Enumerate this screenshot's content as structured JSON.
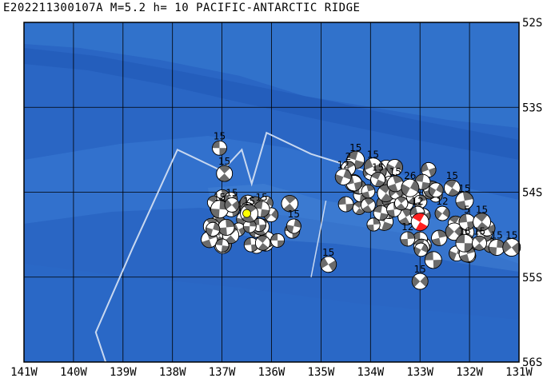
{
  "title": "E202211300107A  M=5.2  h= 10  PACIFIC-ANTARCTIC RIDGE",
  "map": {
    "lon_range": [
      -141,
      -131
    ],
    "lat_range": [
      -56,
      -52
    ],
    "lon_ticks": [
      {
        "value": -141,
        "label": "141W"
      },
      {
        "value": -140,
        "label": "140W"
      },
      {
        "value": -139,
        "label": "139W"
      },
      {
        "value": -138,
        "label": "138W"
      },
      {
        "value": -137,
        "label": "137W"
      },
      {
        "value": -136,
        "label": "136W"
      },
      {
        "value": -135,
        "label": "135W"
      },
      {
        "value": -134,
        "label": "134W"
      },
      {
        "value": -133,
        "label": "133W"
      },
      {
        "value": -132,
        "label": "132W"
      },
      {
        "value": -131,
        "label": "131W"
      }
    ],
    "lat_ticks": [
      {
        "value": -52,
        "label": "52S"
      },
      {
        "value": -53,
        "label": "53S"
      },
      {
        "value": -54,
        "label": "54S"
      },
      {
        "value": -55,
        "label": "55S"
      },
      {
        "value": -56,
        "label": "56S"
      }
    ],
    "colors": {
      "ocean": "#2a66c4",
      "ocean_light": "#3a7ad2",
      "ocean_deep": "#1f55b0",
      "grid": "#000000",
      "plate_boundary": "#c8d8f0",
      "mechanism_dark": "#6b6b6b",
      "mechanism_light": "#ffffff",
      "target_event": "#ff2020",
      "highlight_event": "#ffff00"
    },
    "plate_boundary": [
      [
        -139.35,
        -56.0
      ],
      [
        -139.55,
        -55.65
      ],
      [
        -138.8,
        -54.65
      ],
      [
        -137.9,
        -53.5
      ],
      [
        -137.0,
        -53.75
      ],
      [
        -136.6,
        -53.5
      ],
      [
        -136.4,
        -53.9
      ],
      [
        -136.1,
        -53.3
      ],
      [
        -135.2,
        -53.55
      ],
      [
        -134.1,
        -53.75
      ]
    ],
    "boundary_segment_2": [
      [
        -135.2,
        -55.0
      ],
      [
        -134.9,
        -54.1
      ]
    ],
    "labeled_events": [
      {
        "lon": -137.05,
        "lat": -53.48,
        "label": "15"
      },
      {
        "lon": -136.95,
        "lat": -53.78,
        "label": "15"
      },
      {
        "lon": -137.05,
        "lat": -54.2,
        "label": "15"
      },
      {
        "lon": -136.8,
        "lat": -54.15,
        "label": "15"
      },
      {
        "lon": -136.2,
        "lat": -54.2,
        "label": "15"
      },
      {
        "lon": -136.45,
        "lat": -54.25,
        "label": "15"
      },
      {
        "lon": -135.55,
        "lat": -54.4,
        "label": "15"
      },
      {
        "lon": -134.85,
        "lat": -54.85,
        "label": "15"
      },
      {
        "lon": -134.3,
        "lat": -53.62,
        "label": "15"
      },
      {
        "lon": -134.45,
        "lat": -53.72,
        "label": "2"
      },
      {
        "lon": -134.55,
        "lat": -53.82,
        "label": "12"
      },
      {
        "lon": -133.95,
        "lat": -53.7,
        "label": "15"
      },
      {
        "lon": -133.85,
        "lat": -53.85,
        "label": "15"
      },
      {
        "lon": -133.5,
        "lat": -53.9,
        "label": "15"
      },
      {
        "lon": -133.2,
        "lat": -53.95,
        "label": "26"
      },
      {
        "lon": -133.05,
        "lat": -54.25,
        "label": "12"
      },
      {
        "lon": -132.35,
        "lat": -53.95,
        "label": "15"
      },
      {
        "lon": -132.1,
        "lat": -54.1,
        "label": "15"
      },
      {
        "lon": -132.55,
        "lat": -54.25,
        "label": "12"
      },
      {
        "lon": -132.05,
        "lat": -54.35,
        "label": "5"
      },
      {
        "lon": -131.75,
        "lat": -54.35,
        "label": "15"
      },
      {
        "lon": -133.25,
        "lat": -54.55,
        "label": "12"
      },
      {
        "lon": -133.0,
        "lat": -55.05,
        "label": "15"
      },
      {
        "lon": -132.1,
        "lat": -54.6,
        "label": "16"
      },
      {
        "lon": -131.8,
        "lat": -54.6,
        "label": "15"
      },
      {
        "lon": -131.45,
        "lat": -54.65,
        "label": "15"
      },
      {
        "lon": -131.15,
        "lat": -54.65,
        "label": "15"
      }
    ],
    "target_event": {
      "lon": -133.0,
      "lat": -54.35
    },
    "highlight_event": {
      "lon": -136.5,
      "lat": -54.25
    }
  }
}
